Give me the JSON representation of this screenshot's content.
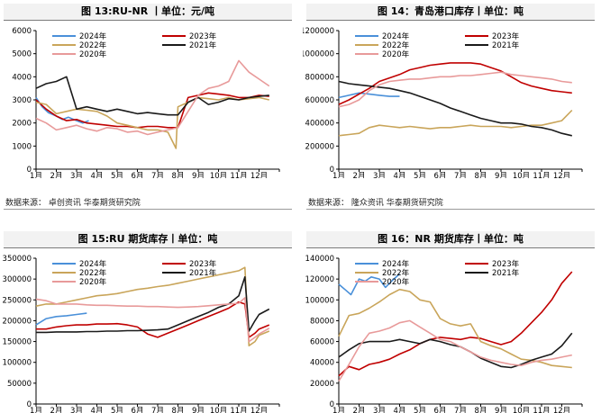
{
  "chart_data": [
    {
      "type": "line",
      "title": "图 13:RU-NR 丨单位：元/吨",
      "source": "数据来源：  卓创资讯  华泰期货研究院",
      "categories": [
        "1月",
        "2月",
        "3月",
        "4月",
        "5月",
        "6月",
        "7月",
        "8月",
        "9月",
        "10月",
        "11月",
        "12月"
      ],
      "ylim": [
        0,
        6000
      ],
      "yticks": [
        0,
        1000,
        2000,
        3000,
        4000,
        5000,
        6000
      ],
      "series": [
        {
          "name": "2024年",
          "color": "#4a90d9",
          "x": [
            1,
            1.3,
            1.6,
            2,
            2.3,
            2.6,
            3,
            3.3,
            3.6
          ],
          "values": [
            3100,
            2700,
            2450,
            2300,
            2150,
            2250,
            2100,
            2000,
            2100
          ]
        },
        {
          "name": "2023年",
          "color": "#c00000",
          "x": [
            1,
            1.5,
            2,
            2.5,
            3,
            3.5,
            4,
            4.5,
            5,
            5.5,
            6,
            6.5,
            7,
            7.5,
            8,
            8.5,
            9,
            9.5,
            10,
            10.5,
            11,
            11.5,
            12,
            12.5
          ],
          "values": [
            3000,
            2600,
            2300,
            2100,
            2150,
            2000,
            1950,
            1900,
            1850,
            1850,
            1800,
            1850,
            1850,
            1800,
            1800,
            3100,
            3200,
            3300,
            3250,
            3200,
            3100,
            3100,
            3200,
            3150
          ]
        },
        {
          "name": "2022年",
          "color": "#c9a55a",
          "x": [
            1,
            1.5,
            2,
            2.5,
            3,
            3.5,
            4,
            4.5,
            5,
            5.5,
            6,
            6.5,
            7,
            7.5,
            7.9,
            8,
            8.5,
            9,
            9.5,
            10,
            10.5,
            11,
            11.5,
            12,
            12.5
          ],
          "values": [
            2900,
            2800,
            2400,
            2500,
            2600,
            2550,
            2500,
            2300,
            2000,
            1900,
            1800,
            1700,
            1700,
            1600,
            900,
            2700,
            2900,
            3100,
            3050,
            3000,
            3100,
            3000,
            3050,
            3100,
            3000
          ]
        },
        {
          "name": "2021年",
          "color": "#1a1a1a",
          "x": [
            1,
            1.5,
            2,
            2.5,
            3,
            3.5,
            4,
            4.5,
            5,
            5.5,
            6,
            6.5,
            7,
            7.5,
            8,
            8.5,
            9,
            9.5,
            10,
            10.5,
            11,
            11.5,
            12,
            12.5
          ],
          "values": [
            3500,
            3700,
            3800,
            4000,
            2600,
            2700,
            2600,
            2500,
            2600,
            2500,
            2400,
            2450,
            2400,
            2350,
            2350,
            2900,
            3100,
            2800,
            2900,
            3050,
            3000,
            3100,
            3150,
            3200
          ]
        },
        {
          "name": "2020年",
          "color": "#e89a9a",
          "x": [
            1,
            1.5,
            2,
            2.5,
            3,
            3.5,
            4,
            4.5,
            5,
            5.5,
            6,
            6.5,
            7,
            7.5,
            8,
            8.5,
            9,
            9.5,
            10,
            10.5,
            11,
            11.5,
            12,
            12.5
          ],
          "values": [
            2200,
            2000,
            1700,
            1800,
            1900,
            1750,
            1650,
            1800,
            1750,
            1600,
            1650,
            1500,
            1600,
            1700,
            1800,
            2500,
            3200,
            3500,
            3600,
            3800,
            4700,
            4200,
            3900,
            3600
          ]
        }
      ]
    },
    {
      "type": "line",
      "title": "图 14：青岛港口库存丨单位：吨",
      "source": "数据来源：  隆众资讯  华泰期货研究院",
      "categories": [
        "1月",
        "2月",
        "3月",
        "4月",
        "5月",
        "6月",
        "7月",
        "8月",
        "9月",
        "10月",
        "11月",
        "12月"
      ],
      "ylim": [
        0,
        1200000
      ],
      "yticks": [
        0,
        200000,
        400000,
        600000,
        800000,
        1000000,
        1200000
      ],
      "series": [
        {
          "name": "2024年",
          "color": "#4a90d9",
          "x": [
            1,
            1.5,
            2,
            2.5,
            3,
            3.5,
            4
          ],
          "values": [
            620000,
            640000,
            660000,
            650000,
            640000,
            630000,
            630000
          ]
        },
        {
          "name": "2023年",
          "color": "#c00000",
          "x": [
            1,
            1.5,
            2,
            2.5,
            3,
            3.5,
            4,
            4.5,
            5,
            5.5,
            6,
            6.5,
            7,
            7.5,
            8,
            8.5,
            9,
            9.5,
            10,
            10.5,
            11,
            11.5,
            12,
            12.5
          ],
          "values": [
            560000,
            600000,
            650000,
            700000,
            760000,
            790000,
            820000,
            860000,
            880000,
            900000,
            910000,
            920000,
            920000,
            920000,
            910000,
            880000,
            850000,
            800000,
            750000,
            720000,
            700000,
            680000,
            670000,
            660000
          ]
        },
        {
          "name": "2022年",
          "color": "#c9a55a",
          "x": [
            1,
            1.5,
            2,
            2.5,
            3,
            3.5,
            4,
            4.5,
            5,
            5.5,
            6,
            6.5,
            7,
            7.5,
            8,
            8.5,
            9,
            9.5,
            10,
            10.5,
            11,
            11.5,
            12,
            12.5
          ],
          "values": [
            290000,
            300000,
            310000,
            360000,
            380000,
            370000,
            360000,
            370000,
            360000,
            350000,
            360000,
            360000,
            370000,
            380000,
            370000,
            370000,
            370000,
            360000,
            370000,
            380000,
            380000,
            400000,
            420000,
            510000
          ]
        },
        {
          "name": "2021年",
          "color": "#1a1a1a",
          "x": [
            1,
            1.5,
            2,
            2.5,
            3,
            3.5,
            4,
            4.5,
            5,
            5.5,
            6,
            6.5,
            7,
            7.5,
            8,
            8.5,
            9,
            9.5,
            10,
            10.5,
            11,
            11.5,
            12,
            12.5
          ],
          "values": [
            760000,
            740000,
            730000,
            720000,
            710000,
            700000,
            680000,
            660000,
            630000,
            600000,
            570000,
            530000,
            500000,
            470000,
            440000,
            420000,
            400000,
            400000,
            390000,
            370000,
            360000,
            340000,
            310000,
            290000
          ]
        },
        {
          "name": "2020年",
          "color": "#e89a9a",
          "x": [
            1,
            1.5,
            2,
            2.5,
            3,
            3.5,
            4,
            4.5,
            5,
            5.5,
            6,
            6.5,
            7,
            7.5,
            8,
            8.5,
            9,
            9.5,
            10,
            10.5,
            11,
            11.5,
            12,
            12.5
          ],
          "values": [
            540000,
            560000,
            600000,
            680000,
            730000,
            760000,
            770000,
            780000,
            780000,
            790000,
            800000,
            800000,
            810000,
            810000,
            820000,
            830000,
            840000,
            820000,
            810000,
            800000,
            790000,
            780000,
            760000,
            750000
          ]
        }
      ]
    },
    {
      "type": "line",
      "title": "图 15:RU 期货库存丨单位：吨",
      "source": "",
      "categories": [
        "1月",
        "2月",
        "3月",
        "4月",
        "5月",
        "6月",
        "7月",
        "8月",
        "9月",
        "10月",
        "11月",
        "12月"
      ],
      "ylim": [
        0,
        350000
      ],
      "yticks": [
        0,
        50000,
        100000,
        150000,
        200000,
        250000,
        300000,
        350000
      ],
      "series": [
        {
          "name": "2024年",
          "color": "#4a90d9",
          "x": [
            1,
            1.5,
            2,
            2.5,
            3,
            3.5
          ],
          "values": [
            190000,
            205000,
            210000,
            212000,
            215000,
            218000
          ]
        },
        {
          "name": "2023年",
          "color": "#c00000",
          "x": [
            1,
            1.5,
            2,
            2.5,
            3,
            3.5,
            4,
            4.5,
            5,
            5.5,
            6,
            6.5,
            7,
            7.5,
            8,
            8.5,
            9,
            9.5,
            10,
            10.5,
            11,
            11.3,
            11.5,
            11.8,
            12,
            12.5
          ],
          "values": [
            180000,
            180000,
            185000,
            188000,
            190000,
            190000,
            192000,
            192000,
            193000,
            190000,
            185000,
            168000,
            160000,
            170000,
            180000,
            190000,
            200000,
            210000,
            220000,
            230000,
            245000,
            240000,
            160000,
            170000,
            180000,
            190000
          ]
        },
        {
          "name": "2022年",
          "color": "#c9a55a",
          "x": [
            1,
            1.5,
            2,
            2.5,
            3,
            3.5,
            4,
            4.5,
            5,
            5.5,
            6,
            6.5,
            7,
            7.5,
            8,
            8.5,
            9,
            9.5,
            10,
            10.5,
            11,
            11.3,
            11.5,
            11.8,
            12,
            12.5
          ],
          "values": [
            235000,
            240000,
            240000,
            245000,
            250000,
            255000,
            260000,
            262000,
            265000,
            270000,
            275000,
            278000,
            282000,
            285000,
            290000,
            295000,
            300000,
            305000,
            310000,
            315000,
            320000,
            328000,
            140000,
            150000,
            165000,
            175000
          ]
        },
        {
          "name": "2021年",
          "color": "#1a1a1a",
          "x": [
            1,
            1.5,
            2,
            2.5,
            3,
            3.5,
            4,
            4.5,
            5,
            5.5,
            6,
            6.5,
            7,
            7.5,
            8,
            8.5,
            9,
            9.5,
            10,
            10.5,
            11,
            11.3,
            11.5,
            11.8,
            12,
            12.5
          ],
          "values": [
            172000,
            172000,
            173000,
            173000,
            173000,
            174000,
            174000,
            175000,
            175000,
            176000,
            176000,
            177000,
            178000,
            180000,
            190000,
            200000,
            210000,
            220000,
            232000,
            240000,
            260000,
            305000,
            175000,
            200000,
            215000,
            228000
          ]
        },
        {
          "name": "2020年",
          "color": "#e89a9a",
          "x": [
            1,
            1.5,
            2,
            2.5,
            3,
            3.5,
            4,
            4.5,
            5,
            5.5,
            6,
            6.5,
            7,
            7.5,
            8,
            8.5,
            9,
            9.5,
            10,
            10.5,
            11,
            11.3,
            11.5,
            11.8,
            12,
            12.5
          ],
          "values": [
            252000,
            248000,
            240000,
            240000,
            240000,
            238000,
            237000,
            237000,
            236000,
            235000,
            235000,
            234000,
            234000,
            233000,
            232000,
            233000,
            234000,
            236000,
            238000,
            240000,
            242000,
            255000,
            150000,
            160000,
            168000,
            182000
          ]
        }
      ]
    },
    {
      "type": "line",
      "title": "图 16：NR 期货库存丨单位：吨",
      "source": "",
      "categories": [
        "1月",
        "2月",
        "3月",
        "4月",
        "5月",
        "6月",
        "7月",
        "8月",
        "9月",
        "10月",
        "11月",
        "12月"
      ],
      "ylim": [
        0,
        140000
      ],
      "yticks": [
        0,
        20000,
        40000,
        60000,
        80000,
        100000,
        120000,
        140000
      ],
      "series": [
        {
          "name": "2024年",
          "color": "#4a90d9",
          "x": [
            1,
            1.3,
            1.6,
            2,
            2.3,
            2.6,
            3,
            3.3,
            3.6,
            4
          ],
          "values": [
            115000,
            110000,
            105000,
            120000,
            118000,
            122000,
            120000,
            112000,
            118000,
            125000
          ]
        },
        {
          "name": "2023年",
          "color": "#c00000",
          "x": [
            1,
            1.5,
            2,
            2.5,
            3,
            3.5,
            4,
            4.5,
            5,
            5.5,
            6,
            6.5,
            7,
            7.5,
            8,
            8.5,
            9,
            9.5,
            10,
            10.5,
            11,
            11.5,
            12,
            12.5
          ],
          "values": [
            27000,
            36000,
            33000,
            38000,
            40000,
            43000,
            48000,
            52000,
            58000,
            62000,
            64000,
            63000,
            62000,
            64000,
            63000,
            60000,
            57000,
            60000,
            68000,
            78000,
            88000,
            100000,
            116000,
            127000
          ]
        },
        {
          "name": "2022年",
          "color": "#c9a55a",
          "x": [
            1,
            1.5,
            2,
            2.5,
            3,
            3.5,
            4,
            4.5,
            5,
            5.5,
            6,
            6.5,
            7,
            7.5,
            8,
            8.5,
            9,
            9.5,
            10,
            10.5,
            11,
            11.5,
            12,
            12.5
          ],
          "values": [
            65000,
            85000,
            87000,
            92000,
            98000,
            105000,
            110000,
            108000,
            100000,
            98000,
            82000,
            77000,
            75000,
            77000,
            60000,
            56000,
            53000,
            48000,
            43000,
            42000,
            40000,
            37000,
            36000,
            35000
          ]
        },
        {
          "name": "2021年",
          "color": "#1a1a1a",
          "x": [
            1,
            1.5,
            2,
            2.5,
            3,
            3.5,
            4,
            4.5,
            5,
            5.5,
            6,
            6.5,
            7,
            7.5,
            8,
            8.5,
            9,
            9.5,
            10,
            10.5,
            11,
            11.5,
            12,
            12.5
          ],
          "values": [
            45000,
            52000,
            58000,
            60000,
            60000,
            60000,
            62000,
            60000,
            58000,
            62000,
            60000,
            57000,
            55000,
            50000,
            44000,
            40000,
            36000,
            35000,
            38000,
            42000,
            45000,
            48000,
            56000,
            68000
          ]
        },
        {
          "name": "2020年",
          "color": "#e89a9a",
          "x": [
            1,
            1.5,
            2,
            2.5,
            3,
            3.5,
            4,
            4.5,
            5,
            5.5,
            6,
            6.5,
            7,
            7.5,
            8,
            8.5,
            9,
            9.5,
            10,
            10.5,
            11,
            11.5,
            12,
            12.5
          ],
          "values": [
            22000,
            38000,
            55000,
            68000,
            70000,
            73000,
            78000,
            80000,
            74000,
            68000,
            62000,
            60000,
            55000,
            50000,
            45000,
            42000,
            40000,
            38000,
            37000,
            40000,
            42000,
            43000,
            45000,
            47000
          ]
        }
      ]
    }
  ]
}
